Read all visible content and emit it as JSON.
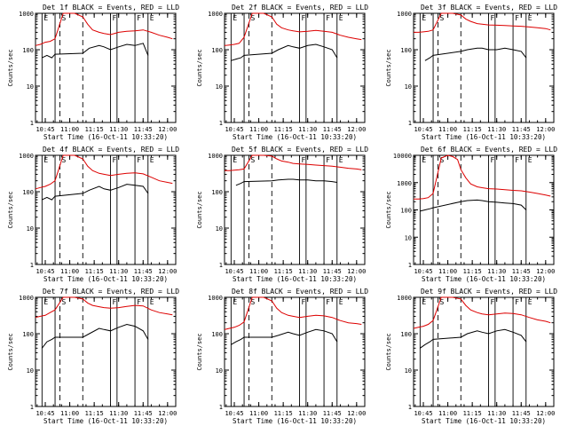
{
  "colors": {
    "events": "#000000",
    "lld": "#dd0000",
    "axis": "#000000"
  },
  "chart_data": [
    {
      "type": "line",
      "title": "Det 1f BLACK = Events, RED = LLD",
      "xlabel": "Start Time (16-Oct-11 10:33:20)",
      "ylabel": "Counts/sec",
      "y_scale": "log",
      "ylim": [
        1,
        1000
      ],
      "xlim": [
        "10:39",
        "12:05"
      ],
      "x_ticks": [
        "10:45",
        "11:00",
        "11:15",
        "11:30",
        "11:45",
        "12:00"
      ],
      "y_ticks": [
        "1",
        "10",
        "100",
        "1000"
      ],
      "markers": [
        "E",
        "S",
        "F",
        "F",
        "E"
      ],
      "series": [
        {
          "name": "Events",
          "x": [
            "10:43",
            "10:46",
            "10:49",
            "10:51",
            "11:08",
            "11:12",
            "11:18",
            "11:21",
            "11:25",
            "11:30",
            "11:35",
            "11:40",
            "11:45",
            "11:48"
          ],
          "values": [
            60,
            70,
            60,
            75,
            80,
            110,
            130,
            120,
            100,
            120,
            140,
            130,
            150,
            70
          ]
        },
        {
          "name": "LLD",
          "x": [
            "10:39",
            "10:42",
            "10:45",
            "10:48",
            "10:51",
            "10:56",
            "11:03",
            "11:08",
            "11:11",
            "11:14",
            "11:18",
            "11:21",
            "11:25",
            "11:30",
            "11:35",
            "11:40",
            "11:45",
            "11:50",
            "11:55",
            "12:00",
            "12:03"
          ],
          "values": [
            130,
            140,
            160,
            170,
            200,
            1000,
            1000,
            800,
            500,
            350,
            300,
            280,
            260,
            300,
            320,
            330,
            350,
            300,
            250,
            220,
            200
          ]
        }
      ]
    },
    {
      "type": "line",
      "title": "Det 2f BLACK = Events, RED = LLD",
      "xlabel": "Start Time (16-Oct-11 10:33:20)",
      "ylabel": "Counts/sec",
      "y_scale": "log",
      "ylim": [
        1,
        1000
      ],
      "xlim": [
        "10:39",
        "12:05"
      ],
      "x_ticks": [
        "10:45",
        "11:00",
        "11:15",
        "11:30",
        "11:45",
        "12:00"
      ],
      "y_ticks": [
        "1",
        "10",
        "100",
        "1000"
      ],
      "markers": [
        "E",
        "S",
        "F",
        "F",
        "E"
      ],
      "series": [
        {
          "name": "Events",
          "x": [
            "10:43",
            "10:46",
            "10:49",
            "10:51",
            "11:08",
            "11:12",
            "11:18",
            "11:21",
            "11:25",
            "11:30",
            "11:35",
            "11:40",
            "11:45",
            "11:48"
          ],
          "values": [
            50,
            55,
            60,
            70,
            80,
            100,
            130,
            120,
            110,
            130,
            140,
            120,
            100,
            60
          ]
        },
        {
          "name": "LLD",
          "x": [
            "10:39",
            "10:42",
            "10:45",
            "10:48",
            "10:51",
            "10:56",
            "11:03",
            "11:08",
            "11:11",
            "11:14",
            "11:18",
            "11:21",
            "11:25",
            "11:30",
            "11:35",
            "11:40",
            "11:45",
            "11:50",
            "11:55",
            "12:00",
            "12:03"
          ],
          "values": [
            130,
            135,
            140,
            150,
            220,
            1000,
            1000,
            800,
            500,
            400,
            350,
            330,
            310,
            320,
            340,
            320,
            300,
            250,
            220,
            200,
            190
          ]
        }
      ]
    },
    {
      "type": "line",
      "title": "Det 3f BLACK = Events, RED = LLD",
      "xlabel": "Start Time (16-Oct-11 10:33:20)",
      "ylabel": "Counts/sec",
      "y_scale": "log",
      "ylim": [
        1,
        1000
      ],
      "xlim": [
        "10:39",
        "12:05"
      ],
      "x_ticks": [
        "10:45",
        "11:00",
        "11:15",
        "11:30",
        "11:45",
        "12:00"
      ],
      "y_ticks": [
        "1",
        "10",
        "100",
        "1000"
      ],
      "markers": [
        "E",
        "S",
        "F",
        "F",
        "E"
      ],
      "series": [
        {
          "name": "Events",
          "x": [
            "10:46",
            "10:49",
            "10:51",
            "11:08",
            "11:12",
            "11:18",
            "11:21",
            "11:25",
            "11:30",
            "11:35",
            "11:40",
            "11:45",
            "11:48"
          ],
          "values": [
            50,
            60,
            70,
            90,
            100,
            110,
            110,
            100,
            100,
            110,
            100,
            90,
            60
          ]
        },
        {
          "name": "LLD",
          "x": [
            "10:39",
            "10:42",
            "10:45",
            "10:48",
            "10:51",
            "10:56",
            "11:03",
            "11:08",
            "11:11",
            "11:14",
            "11:18",
            "11:21",
            "11:25",
            "11:30",
            "11:35",
            "11:40",
            "11:45",
            "11:50",
            "11:55",
            "12:00",
            "12:03"
          ],
          "values": [
            300,
            300,
            310,
            320,
            350,
            1000,
            1000,
            900,
            700,
            600,
            520,
            500,
            480,
            470,
            460,
            450,
            440,
            420,
            400,
            380,
            350
          ]
        }
      ]
    },
    {
      "type": "line",
      "title": "Det 4f BLACK = Events, RED = LLD",
      "xlabel": "Start Time (16-Oct-11 10:33:20)",
      "ylabel": "Counts/sec",
      "y_scale": "log",
      "ylim": [
        1,
        1000
      ],
      "xlim": [
        "10:39",
        "12:05"
      ],
      "x_ticks": [
        "10:45",
        "11:00",
        "11:15",
        "11:30",
        "11:45",
        "12:00"
      ],
      "y_ticks": [
        "1",
        "10",
        "100",
        "1000"
      ],
      "markers": [
        "E",
        "S",
        "F",
        "F",
        "E"
      ],
      "series": [
        {
          "name": "Events",
          "x": [
            "10:43",
            "10:46",
            "10:49",
            "10:51",
            "11:08",
            "11:12",
            "11:18",
            "11:21",
            "11:25",
            "11:30",
            "11:35",
            "11:40",
            "11:45",
            "11:48"
          ],
          "values": [
            60,
            70,
            60,
            75,
            90,
            110,
            140,
            120,
            110,
            130,
            160,
            150,
            140,
            90
          ]
        },
        {
          "name": "LLD",
          "x": [
            "10:39",
            "10:42",
            "10:45",
            "10:48",
            "10:51",
            "10:56",
            "11:03",
            "11:08",
            "11:11",
            "11:14",
            "11:18",
            "11:21",
            "11:25",
            "11:30",
            "11:35",
            "11:40",
            "11:45",
            "11:50",
            "11:55",
            "12:00",
            "12:03"
          ],
          "values": [
            120,
            130,
            140,
            160,
            200,
            1000,
            1000,
            800,
            500,
            380,
            320,
            300,
            280,
            300,
            320,
            330,
            310,
            250,
            200,
            180,
            170
          ]
        }
      ]
    },
    {
      "type": "line",
      "title": "Det 5f BLACK = Events, RED = LLD",
      "xlabel": "Start Time (16-Oct-11 10:33:20)",
      "ylabel": "Counts/sec",
      "y_scale": "log",
      "ylim": [
        1,
        1000
      ],
      "xlim": [
        "10:39",
        "12:05"
      ],
      "x_ticks": [
        "10:45",
        "11:00",
        "11:15",
        "11:30",
        "11:45",
        "12:00"
      ],
      "y_ticks": [
        "1",
        "10",
        "100",
        "1000"
      ],
      "markers": [
        "E",
        "S",
        "F",
        "F",
        "E"
      ],
      "series": [
        {
          "name": "Events",
          "x": [
            "10:46",
            "10:49",
            "10:51",
            "11:08",
            "11:12",
            "11:18",
            "11:21",
            "11:25",
            "11:30",
            "11:35",
            "11:40",
            "11:45",
            "11:48"
          ],
          "values": [
            150,
            170,
            190,
            200,
            210,
            220,
            220,
            210,
            210,
            200,
            200,
            190,
            180
          ]
        },
        {
          "name": "LLD",
          "x": [
            "10:39",
            "10:42",
            "10:45",
            "10:48",
            "10:51",
            "10:56",
            "11:03",
            "11:08",
            "11:11",
            "11:14",
            "11:18",
            "11:21",
            "11:25",
            "11:30",
            "11:35",
            "11:40",
            "11:45",
            "11:50",
            "11:55",
            "12:00",
            "12:03"
          ],
          "values": [
            380,
            380,
            390,
            400,
            420,
            1000,
            1000,
            950,
            800,
            700,
            650,
            600,
            580,
            560,
            540,
            520,
            500,
            470,
            440,
            420,
            400
          ]
        }
      ]
    },
    {
      "type": "line",
      "title": "Det 6f BLACK = Events, RED = LLD",
      "xlabel": "Start Time (16-Oct-11 10:33:20)",
      "ylabel": "Counts/sec",
      "y_scale": "log",
      "ylim": [
        1,
        10000
      ],
      "xlim": [
        "10:39",
        "12:05"
      ],
      "x_ticks": [
        "10:45",
        "11:00",
        "11:15",
        "11:30",
        "11:45",
        "12:00"
      ],
      "y_ticks": [
        "1",
        "10",
        "100",
        "1000",
        "10000"
      ],
      "markers": [
        "E",
        "S",
        "F",
        "F",
        "E"
      ],
      "series": [
        {
          "name": "Events",
          "x": [
            "10:43",
            "10:46",
            "10:49",
            "10:51",
            "11:08",
            "11:12",
            "11:18",
            "11:21",
            "11:25",
            "11:30",
            "11:35",
            "11:40",
            "11:45",
            "11:48"
          ],
          "values": [
            90,
            100,
            110,
            120,
            200,
            220,
            230,
            220,
            200,
            190,
            180,
            170,
            150,
            100
          ]
        },
        {
          "name": "LLD",
          "x": [
            "10:39",
            "10:42",
            "10:45",
            "10:48",
            "10:51",
            "10:56",
            "11:00",
            "11:03",
            "11:06",
            "11:08",
            "11:11",
            "11:14",
            "11:18",
            "11:21",
            "11:25",
            "11:30",
            "11:35",
            "11:40",
            "11:45",
            "11:50",
            "11:55",
            "12:00",
            "12:03"
          ],
          "values": [
            250,
            250,
            260,
            280,
            400,
            8000,
            10000,
            9000,
            7000,
            3000,
            1500,
            900,
            700,
            650,
            600,
            580,
            550,
            520,
            500,
            450,
            400,
            350,
            320
          ]
        }
      ]
    },
    {
      "type": "line",
      "title": "Det 7f BLACK = Events, RED = LLD",
      "xlabel": "Start Time (16-Oct-11 10:33:20)",
      "ylabel": "Counts/sec",
      "y_scale": "log",
      "ylim": [
        1,
        1000
      ],
      "xlim": [
        "10:39",
        "12:05"
      ],
      "x_ticks": [
        "10:45",
        "11:00",
        "11:15",
        "11:30",
        "11:45",
        "12:00"
      ],
      "y_ticks": [
        "1",
        "10",
        "100",
        "1000"
      ],
      "markers": [
        "E",
        "S",
        "F",
        "F",
        "E"
      ],
      "series": [
        {
          "name": "Events",
          "x": [
            "10:43",
            "10:46",
            "10:49",
            "10:51",
            "11:08",
            "11:12",
            "11:18",
            "11:21",
            "11:25",
            "11:30",
            "11:35",
            "11:40",
            "11:45",
            "11:48"
          ],
          "values": [
            40,
            60,
            70,
            80,
            80,
            100,
            140,
            130,
            120,
            150,
            180,
            160,
            120,
            70
          ]
        },
        {
          "name": "LLD",
          "x": [
            "10:39",
            "10:42",
            "10:45",
            "10:48",
            "10:51",
            "10:56",
            "11:03",
            "11:08",
            "11:11",
            "11:14",
            "11:18",
            "11:21",
            "11:25",
            "11:30",
            "11:35",
            "11:40",
            "11:45",
            "11:50",
            "11:55",
            "12:00",
            "12:03"
          ],
          "values": [
            280,
            300,
            320,
            380,
            450,
            1000,
            1000,
            900,
            700,
            600,
            550,
            520,
            500,
            520,
            560,
            600,
            580,
            450,
            380,
            350,
            330
          ]
        }
      ]
    },
    {
      "type": "line",
      "title": "Det 8f BLACK = Events, RED = LLD",
      "xlabel": "Start Time (16-Oct-11 10:33:20)",
      "ylabel": "Counts/sec",
      "y_scale": "log",
      "ylim": [
        1,
        1000
      ],
      "xlim": [
        "10:39",
        "12:05"
      ],
      "x_ticks": [
        "10:45",
        "11:00",
        "11:15",
        "11:30",
        "11:45",
        "12:00"
      ],
      "y_ticks": [
        "1",
        "10",
        "100",
        "1000"
      ],
      "markers": [
        "E",
        "S",
        "F",
        "F",
        "E"
      ],
      "series": [
        {
          "name": "Events",
          "x": [
            "10:43",
            "10:46",
            "10:49",
            "10:51",
            "11:08",
            "11:12",
            "11:18",
            "11:21",
            "11:25",
            "11:30",
            "11:35",
            "11:40",
            "11:45",
            "11:48"
          ],
          "values": [
            50,
            60,
            70,
            80,
            80,
            90,
            110,
            100,
            90,
            110,
            130,
            120,
            100,
            60
          ]
        },
        {
          "name": "LLD",
          "x": [
            "10:39",
            "10:42",
            "10:45",
            "10:48",
            "10:51",
            "10:56",
            "11:03",
            "11:08",
            "11:11",
            "11:14",
            "11:18",
            "11:21",
            "11:25",
            "11:30",
            "11:35",
            "11:40",
            "11:45",
            "11:50",
            "11:55",
            "12:00",
            "12:03"
          ],
          "values": [
            130,
            140,
            150,
            170,
            210,
            1000,
            1000,
            800,
            500,
            380,
            320,
            300,
            280,
            300,
            320,
            310,
            280,
            230,
            200,
            190,
            180
          ]
        }
      ]
    },
    {
      "type": "line",
      "title": "Det 9f BLACK = Events, RED = LLD",
      "xlabel": "Start Time (16-Oct-11 10:33:20)",
      "ylabel": "Counts/sec",
      "y_scale": "log",
      "ylim": [
        1,
        1000
      ],
      "xlim": [
        "10:39",
        "12:05"
      ],
      "x_ticks": [
        "10:45",
        "11:00",
        "11:15",
        "11:30",
        "11:45",
        "12:00"
      ],
      "y_ticks": [
        "1",
        "10",
        "100",
        "1000"
      ],
      "markers": [
        "E",
        "S",
        "F",
        "F",
        "E"
      ],
      "series": [
        {
          "name": "Events",
          "x": [
            "10:43",
            "10:46",
            "10:49",
            "10:51",
            "11:08",
            "11:12",
            "11:18",
            "11:21",
            "11:25",
            "11:30",
            "11:35",
            "11:40",
            "11:45",
            "11:48"
          ],
          "values": [
            40,
            50,
            60,
            70,
            80,
            100,
            120,
            110,
            100,
            120,
            130,
            110,
            90,
            60
          ]
        },
        {
          "name": "LLD",
          "x": [
            "10:39",
            "10:42",
            "10:45",
            "10:48",
            "10:51",
            "10:56",
            "11:03",
            "11:08",
            "11:11",
            "11:14",
            "11:18",
            "11:21",
            "11:25",
            "11:30",
            "11:35",
            "11:40",
            "11:45",
            "11:50",
            "11:55",
            "12:00",
            "12:03"
          ],
          "values": [
            140,
            150,
            160,
            180,
            230,
            1000,
            1000,
            900,
            600,
            450,
            380,
            350,
            330,
            350,
            370,
            360,
            330,
            280,
            240,
            220,
            200
          ]
        }
      ]
    }
  ]
}
